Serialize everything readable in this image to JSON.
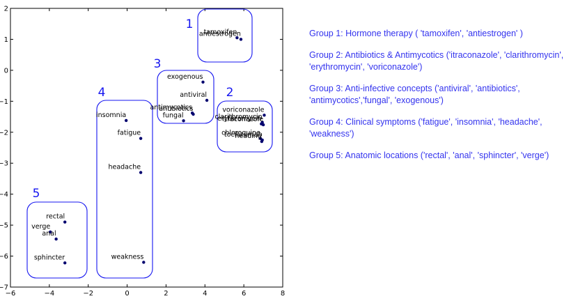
{
  "chart_data": {
    "type": "scatter",
    "title": "",
    "xlabel": "",
    "ylabel": "",
    "xlim": [
      -6,
      8
    ],
    "ylim": [
      -7,
      2
    ],
    "x_ticks": [
      -6,
      -4,
      -2,
      0,
      2,
      4,
      6,
      8
    ],
    "y_ticks": [
      -7,
      -6,
      -5,
      -4,
      -3,
      -2,
      -1,
      0,
      1,
      2
    ],
    "grid": false,
    "point_color": "#00006e",
    "group_color": "#1515f0",
    "points": [
      {
        "label": "tamoxifen",
        "x": 5.65,
        "y": 1.05
      },
      {
        "label": "antiestrogen",
        "x": 5.85,
        "y": 1.0
      },
      {
        "label": "exogenous",
        "x": 3.9,
        "y": -0.38
      },
      {
        "label": "antiviral",
        "x": 4.1,
        "y": -0.97
      },
      {
        "label": "antibiotics",
        "x": 3.4,
        "y": -1.42
      },
      {
        "label": "antimycotics",
        "x": 3.35,
        "y": -1.38
      },
      {
        "label": "fungal",
        "x": 2.9,
        "y": -1.63
      },
      {
        "label": "voriconazole",
        "x": 7.05,
        "y": -1.45
      },
      {
        "label": "clarithromycin",
        "x": 6.95,
        "y": -1.68
      },
      {
        "label": "erythromycin",
        "x": 6.9,
        "y": -1.73
      },
      {
        "label": "itraconazole",
        "x": 7.0,
        "y": -1.76
      },
      {
        "label": "chloroquine",
        "x": 6.85,
        "y": -2.2
      },
      {
        "label": "tocilizumab",
        "x": 6.95,
        "y": -2.25
      },
      {
        "label": "heading",
        "x": 6.92,
        "y": -2.3
      },
      {
        "label": "insomnia",
        "x": -0.05,
        "y": -1.62
      },
      {
        "label": "fatigue",
        "x": 0.7,
        "y": -2.2
      },
      {
        "label": "headache",
        "x": 0.7,
        "y": -3.3
      },
      {
        "label": "weakness",
        "x": 0.85,
        "y": -6.2
      },
      {
        "label": "rectal",
        "x": -3.2,
        "y": -4.9
      },
      {
        "label": "verge",
        "x": -3.95,
        "y": -5.22
      },
      {
        "label": "anal",
        "x": -3.65,
        "y": -5.45
      },
      {
        "label": "sphincter",
        "x": -3.2,
        "y": -6.22
      }
    ],
    "groups": [
      {
        "number": "1",
        "members": [
          "tamoxifen",
          "antiestrogen"
        ]
      },
      {
        "number": "2",
        "members": [
          "voriconazole",
          "clarithromycin",
          "erythromycin",
          "itraconazole",
          "chloroquine",
          "tocilizumab",
          "heading"
        ]
      },
      {
        "number": "3",
        "members": [
          "exogenous",
          "antiviral",
          "antibiotics",
          "antimycotics",
          "fungal"
        ]
      },
      {
        "number": "4",
        "members": [
          "insomnia",
          "fatigue",
          "headache",
          "weakness"
        ]
      },
      {
        "number": "5",
        "members": [
          "rectal",
          "verge",
          "anal",
          "sphincter"
        ]
      }
    ]
  },
  "legend": {
    "group1": "Group 1: Hormone therapy ( 'tamoxifen', 'antiestrogen' )",
    "group2": "Group 2: Antibiotics & Antimycotics ('itraconazole',  'clarithromycin', 'erythromycin', 'voriconazole')",
    "group3": "Group 3: Anti-infective concepts ('antiviral',  'antibiotics', 'antimycotics','fungal', 'exogenous')",
    "group4": "Group 4: Clinical symptoms ('fatigue', 'insomnia',  'headache', 'weakness')",
    "group5": "Group 5: Anatomic locations ('rectal', 'anal',  'sphincter', 'verge')"
  }
}
